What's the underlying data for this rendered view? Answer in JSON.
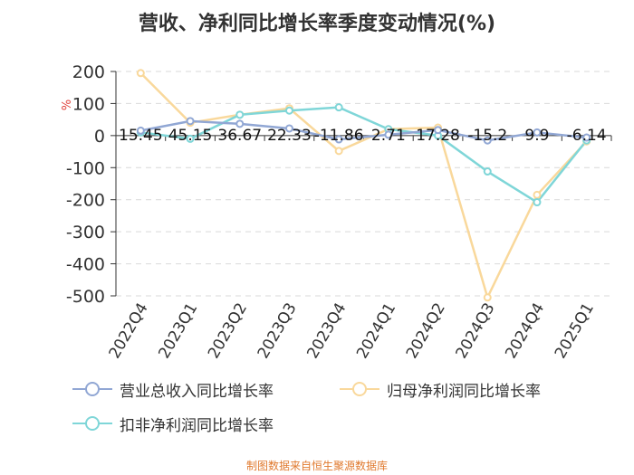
{
  "title": "营收、净利同比增长率季度变动情况(%)",
  "footer": "制图数据来自恒生聚源数据库",
  "chart_data": {
    "type": "line",
    "ylabel": "%",
    "ylim": [
      -500,
      200
    ],
    "yticks": [
      200,
      100,
      0,
      -100,
      -200,
      -300,
      -400,
      -500
    ],
    "categories": [
      "2022Q4",
      "2023Q1",
      "2023Q2",
      "2023Q3",
      "2023Q4",
      "2024Q1",
      "2024Q2",
      "2024Q3",
      "2024Q4",
      "2025Q1"
    ],
    "grid": true,
    "legend_position": "bottom",
    "series": [
      {
        "name": "营业总收入同比增长率",
        "color": "#91a7d4",
        "values": [
          15.45,
          45.15,
          36.67,
          22.33,
          -11.86,
          2.71,
          17.28,
          -15.2,
          9.9,
          -6.14
        ],
        "labels": [
          "15.45",
          "45.15",
          "36.67",
          "22.33",
          "-11.86",
          "2.71",
          "17.28",
          "-15.2",
          "9.9",
          "-6.14"
        ]
      },
      {
        "name": "归母净利润同比增长率",
        "color": "#f9d89b",
        "values": [
          195,
          40,
          65,
          85,
          -48,
          20,
          25,
          -505,
          -185,
          -18
        ]
      },
      {
        "name": "扣非净利润同比增长率",
        "color": "#7fd6d8",
        "values": [
          10,
          -10,
          65,
          78,
          88,
          20,
          0,
          -112,
          -208,
          -15
        ]
      }
    ]
  }
}
